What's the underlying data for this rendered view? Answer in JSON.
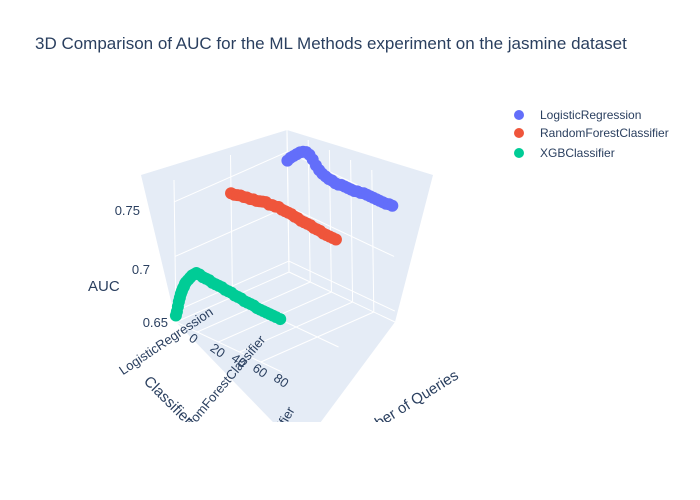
{
  "chart_data": {
    "type": "scatter",
    "title": "3D Comparison of AUC for the ML Methods experiment on the jasmine dataset",
    "xlabel": "Classifier",
    "ylabel": "Number of Queries",
    "zlabel": "AUC",
    "x_categories": [
      "LogisticRegression",
      "RandomForestClassifier",
      "XGBClassifier"
    ],
    "y_ticks": [
      "0",
      "20",
      "40",
      "60",
      "80"
    ],
    "z_ticks": [
      "0.65",
      "0.7",
      "0.75"
    ],
    "y_range": [
      0,
      100
    ],
    "z_range": [
      0.64,
      0.77
    ],
    "legend_position": "top-right",
    "series": [
      {
        "name": "LogisticRegression",
        "color": "#636efa",
        "queries": [
          0,
          3,
          6,
          9,
          12,
          15,
          18,
          21,
          24,
          27,
          30,
          33,
          36,
          39,
          42,
          45,
          48,
          51,
          54,
          57,
          60,
          63,
          66,
          69,
          72,
          75,
          78,
          81,
          84,
          87,
          90,
          93,
          96,
          99
        ],
        "auc": [
          0.742,
          0.746,
          0.749,
          0.752,
          0.755,
          0.757,
          0.758,
          0.757,
          0.754,
          0.75,
          0.747,
          0.745,
          0.744,
          0.743,
          0.743,
          0.742,
          0.742,
          0.743,
          0.743,
          0.743,
          0.743,
          0.743,
          0.744,
          0.744,
          0.745,
          0.745,
          0.745,
          0.745,
          0.745,
          0.745,
          0.745,
          0.745,
          0.746,
          0.746
        ]
      },
      {
        "name": "RandomForestClassifier",
        "color": "#ef553b",
        "queries": [
          0,
          3,
          6,
          9,
          12,
          15,
          18,
          21,
          24,
          27,
          30,
          33,
          36,
          39,
          42,
          45,
          48,
          51,
          54,
          57,
          60,
          63,
          66,
          69,
          72,
          75,
          78,
          81,
          84,
          87,
          90,
          93,
          96,
          99
        ],
        "auc": [
          0.735,
          0.735,
          0.736,
          0.737,
          0.737,
          0.738,
          0.738,
          0.739,
          0.739,
          0.74,
          0.741,
          0.742,
          0.741,
          0.742,
          0.742,
          0.743,
          0.742,
          0.742,
          0.742,
          0.742,
          0.741,
          0.741,
          0.74,
          0.74,
          0.74,
          0.74,
          0.739,
          0.739,
          0.739,
          0.738,
          0.738,
          0.738,
          0.738,
          0.738
        ]
      },
      {
        "name": "XGBClassifier",
        "color": "#00cc96",
        "queries": [
          0,
          1,
          2,
          3,
          4,
          5,
          6,
          7,
          8,
          9,
          10,
          12,
          14,
          16,
          18,
          20,
          23,
          26,
          29,
          32,
          35,
          38,
          41,
          44,
          47,
          50,
          53,
          56,
          59,
          62,
          65,
          68,
          71,
          74,
          77,
          80,
          83,
          86,
          89,
          92,
          95,
          99
        ],
        "auc": [
          0.646,
          0.65,
          0.655,
          0.66,
          0.664,
          0.668,
          0.671,
          0.674,
          0.676,
          0.679,
          0.681,
          0.684,
          0.687,
          0.69,
          0.692,
          0.694,
          0.694,
          0.693,
          0.693,
          0.693,
          0.692,
          0.692,
          0.692,
          0.692,
          0.691,
          0.691,
          0.691,
          0.69,
          0.69,
          0.69,
          0.689,
          0.689,
          0.689,
          0.689,
          0.688,
          0.688,
          0.688,
          0.688,
          0.688,
          0.688,
          0.688,
          0.688
        ]
      }
    ]
  },
  "legend": {
    "items": [
      {
        "label": "LogisticRegression",
        "color": "#636efa"
      },
      {
        "label": "RandomForestClassifier",
        "color": "#ef553b"
      },
      {
        "label": "XGBClassifier",
        "color": "#00cc96"
      }
    ]
  }
}
